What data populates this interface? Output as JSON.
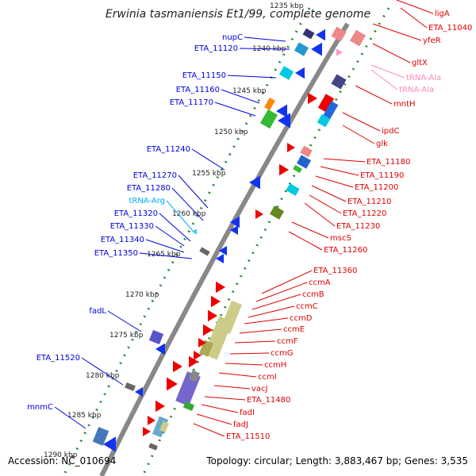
{
  "title": "Erwinia tasmaniensis Et1/99, complete genome",
  "accession": "Accession: NC_010694",
  "topology": "Topology: circular; Length: 3,883,467 bp; Genes: 3,535",
  "colors": {
    "forward": "#e00000",
    "reverse": "#0000dd",
    "rna_rev": "#00aaff",
    "rna_fwd": "#ff88bb",
    "backbone": "#888888",
    "tick": "#228822"
  },
  "kbp_ticks": [
    "1235 kbp",
    "1240 kbp",
    "1245 kbp",
    "1250 kbp",
    "1255 kbp",
    "1260 kbp",
    "1265 kbp",
    "1270 kbp",
    "1275 kbp",
    "1280 kbp",
    "1285 kbp",
    "1290 kbp"
  ],
  "left_labels": [
    {
      "name": "nupC",
      "color": "#0000dd"
    },
    {
      "name": "ETA_11120",
      "color": "#0000dd"
    },
    {
      "name": "ETA_11150",
      "color": "#0000dd"
    },
    {
      "name": "ETA_11160",
      "color": "#0000dd"
    },
    {
      "name": "ETA_11170",
      "color": "#0000dd"
    },
    {
      "name": "ETA_11240",
      "color": "#0000dd"
    },
    {
      "name": "ETA_11270",
      "color": "#0000dd"
    },
    {
      "name": "ETA_11280",
      "color": "#0000dd"
    },
    {
      "name": "tRNA-Arg",
      "color": "#00aaff"
    },
    {
      "name": "ETA_11320",
      "color": "#0000dd"
    },
    {
      "name": "ETA_11330",
      "color": "#0000dd"
    },
    {
      "name": "ETA_11340",
      "color": "#0000dd"
    },
    {
      "name": "ETA_11350",
      "color": "#0000dd"
    },
    {
      "name": "fadL",
      "color": "#0000dd"
    },
    {
      "name": "ETA_11520",
      "color": "#0000dd"
    },
    {
      "name": "mnmC",
      "color": "#0000dd"
    }
  ],
  "right_labels": [
    {
      "name": "ligA",
      "color": "#e00000"
    },
    {
      "name": "ETA_11040",
      "color": "#e00000"
    },
    {
      "name": "yfeR",
      "color": "#e00000"
    },
    {
      "name": "gltX",
      "color": "#e00000"
    },
    {
      "name": "tRNA-Ala",
      "color": "#ff88bb"
    },
    {
      "name": "tRNA-Ala",
      "color": "#ff88bb"
    },
    {
      "name": "mntH",
      "color": "#e00000"
    },
    {
      "name": "ipdC",
      "color": "#e00000"
    },
    {
      "name": "glk",
      "color": "#e00000"
    },
    {
      "name": "ETA_11180",
      "color": "#e00000"
    },
    {
      "name": "ETA_11190",
      "color": "#e00000"
    },
    {
      "name": "ETA_11200",
      "color": "#e00000"
    },
    {
      "name": "ETA_11210",
      "color": "#e00000"
    },
    {
      "name": "ETA_11220",
      "color": "#e00000"
    },
    {
      "name": "ETA_11230",
      "color": "#e00000"
    },
    {
      "name": "mscS",
      "color": "#e00000"
    },
    {
      "name": "ETA_11260",
      "color": "#e00000"
    },
    {
      "name": "ETA_11360",
      "color": "#e00000"
    },
    {
      "name": "ccmA",
      "color": "#e00000"
    },
    {
      "name": "ccmB",
      "color": "#e00000"
    },
    {
      "name": "ccmC",
      "color": "#e00000"
    },
    {
      "name": "ccmD",
      "color": "#e00000"
    },
    {
      "name": "ccmE",
      "color": "#e00000"
    },
    {
      "name": "ccmF",
      "color": "#e00000"
    },
    {
      "name": "ccmG",
      "color": "#e00000"
    },
    {
      "name": "ccmH",
      "color": "#e00000"
    },
    {
      "name": "ccmI",
      "color": "#e00000"
    },
    {
      "name": "vacJ",
      "color": "#e00000"
    },
    {
      "name": "ETA_11480",
      "color": "#e00000"
    },
    {
      "name": "fadI",
      "color": "#e00000"
    },
    {
      "name": "fadJ",
      "color": "#e00000"
    },
    {
      "name": "ETA_11510",
      "color": "#e00000"
    }
  ]
}
